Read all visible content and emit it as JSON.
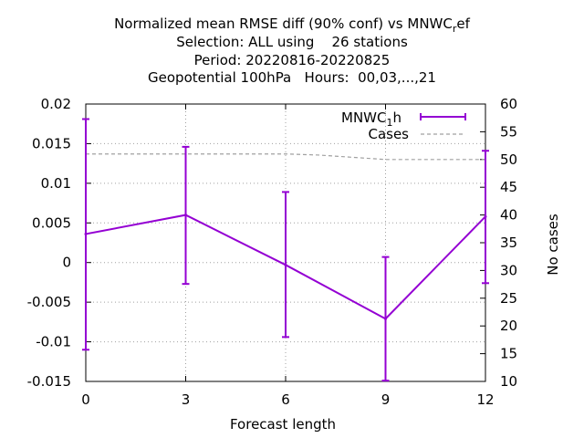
{
  "title": {
    "line1_main": "Normalized mean RMSE diff (90% conf) vs MNWC",
    "line1_sub": "r",
    "line1_tail": "ef",
    "line2": "Selection: ALL using    26 stations",
    "line3": "Period: 20220816-20220825",
    "line4": "Geopotential 100hPa   Hours:  00,03,...,21"
  },
  "chart_data": {
    "type": "line",
    "xlabel": "Forecast length",
    "ylabel": "",
    "y2label": "No cases",
    "xlim": [
      0,
      12
    ],
    "ylim": [
      -0.015,
      0.02
    ],
    "y2lim": [
      10,
      60
    ],
    "x_ticks": [
      0,
      3,
      6,
      9,
      12
    ],
    "y_ticks": [
      "-0.015",
      "-0.01",
      "-0.005",
      "0",
      "0.005",
      "0.01",
      "0.015",
      "0.02"
    ],
    "y2_ticks": [
      "10",
      "15",
      "20",
      "25",
      "30",
      "35",
      "40",
      "45",
      "50",
      "55",
      "60"
    ],
    "grid": true,
    "legend_position": "top-right",
    "series": [
      {
        "name": "MNWC",
        "name_sub": "1",
        "name_tail": "h",
        "color": "#9400d3",
        "x": [
          0,
          3,
          6,
          9,
          12
        ],
        "y": [
          0.0036,
          0.006,
          -0.0003,
          -0.0071,
          0.0058
        ],
        "err_low": [
          -0.011,
          -0.0027,
          -0.0094,
          -0.0149,
          -0.0026
        ],
        "err_high": [
          0.0181,
          0.0146,
          0.0089,
          0.0007,
          0.0141
        ]
      },
      {
        "name": "Cases",
        "color": "#a0a0a0",
        "axis": "y2",
        "style": "dashed",
        "x": [
          0,
          3,
          6,
          7,
          9,
          12
        ],
        "y": [
          51,
          51,
          51,
          50.8,
          50,
          50
        ]
      }
    ]
  }
}
